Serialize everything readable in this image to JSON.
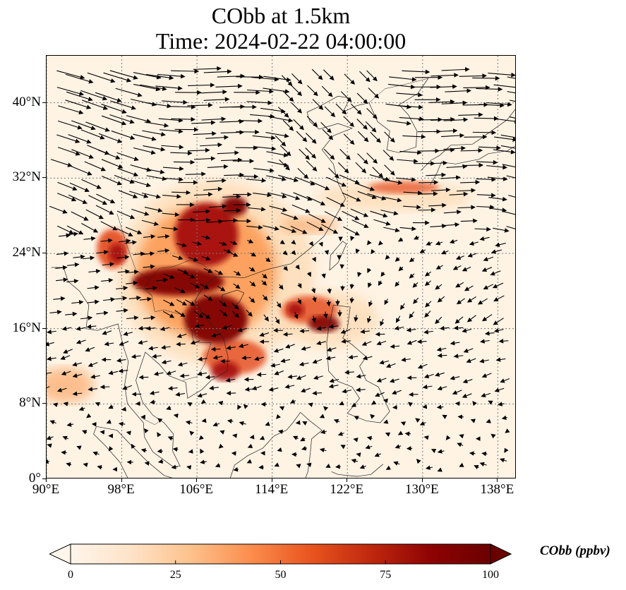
{
  "title_line1": "CObb at 1.5km",
  "title_line2": "Time: 2024-02-22 04:00:00",
  "map": {
    "lon_range": [
      90,
      140
    ],
    "lat_range": [
      0,
      45
    ],
    "lat_ticks": [
      {
        "value": 0,
        "label": "0°"
      },
      {
        "value": 8,
        "label": "8°N"
      },
      {
        "value": 16,
        "label": "16°N"
      },
      {
        "value": 24,
        "label": "24°N"
      },
      {
        "value": 32,
        "label": "32°N"
      },
      {
        "value": 40,
        "label": "40°N"
      }
    ],
    "lon_ticks": [
      {
        "value": 90,
        "label": "90°E"
      },
      {
        "value": 98,
        "label": "98°E"
      },
      {
        "value": 106,
        "label": "106°E"
      },
      {
        "value": 114,
        "label": "114°E"
      },
      {
        "value": 122,
        "label": "122°E"
      },
      {
        "value": 130,
        "label": "130°E"
      },
      {
        "value": 138,
        "label": "138°E"
      }
    ],
    "gridlines": true,
    "plume_colors": [
      "#fff5eb",
      "#fdd9b0",
      "#fc9b55",
      "#e34a1c",
      "#a50f0b",
      "#7f0000"
    ]
  },
  "colorbar": {
    "label": "CObb (ppbv)",
    "min": 0,
    "max": 100,
    "extend": "both",
    "ticks": [
      {
        "value": 0,
        "label": "0"
      },
      {
        "value": 25,
        "label": "25"
      },
      {
        "value": 50,
        "label": "50"
      },
      {
        "value": 75,
        "label": "75"
      },
      {
        "value": 100,
        "label": "100"
      }
    ],
    "colors": [
      "#fff5eb",
      "#fee3c8",
      "#fdc28c",
      "#fc8d4d",
      "#e9551f",
      "#c0280d",
      "#8e0303",
      "#6b0000"
    ]
  }
}
